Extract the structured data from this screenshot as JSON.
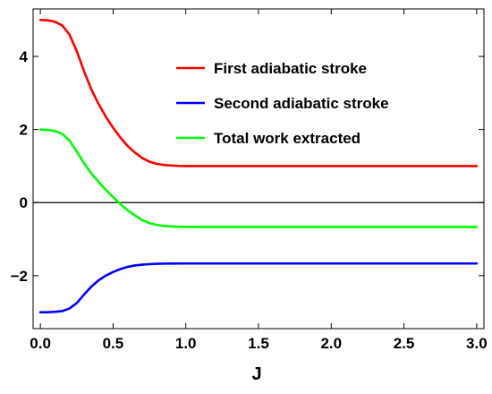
{
  "chart_data": {
    "type": "line",
    "title": "",
    "xlabel": "J",
    "ylabel": "",
    "xlim": [
      -0.05,
      3.05
    ],
    "ylim": [
      -3.45,
      5.3
    ],
    "xticks": [
      0.0,
      0.5,
      1.0,
      1.5,
      2.0,
      2.5,
      3.0
    ],
    "xtick_labels": [
      "0.0",
      "0.5",
      "1.0",
      "1.5",
      "2.0",
      "2.5",
      "3.0"
    ],
    "yticks": [
      -2,
      0,
      2,
      4
    ],
    "ytick_labels": [
      "−2",
      "0",
      "2",
      "4"
    ],
    "zero_line": true,
    "grid": false,
    "legend_position": "top-right",
    "series": [
      {
        "name": "First adiabatic stroke",
        "color": "#ff0000",
        "x": [
          0.0,
          0.05,
          0.1,
          0.15,
          0.2,
          0.25,
          0.3,
          0.35,
          0.4,
          0.45,
          0.5,
          0.55,
          0.6,
          0.65,
          0.7,
          0.75,
          0.8,
          0.85,
          0.9,
          0.95,
          1.0,
          1.1,
          1.2,
          1.5,
          2.0,
          2.5,
          3.0
        ],
        "values": [
          5.0,
          4.99,
          4.95,
          4.85,
          4.6,
          4.15,
          3.6,
          3.1,
          2.7,
          2.35,
          2.05,
          1.78,
          1.55,
          1.37,
          1.22,
          1.12,
          1.06,
          1.03,
          1.015,
          1.005,
          1.0,
          1.0,
          1.0,
          1.0,
          1.0,
          1.0,
          1.0
        ]
      },
      {
        "name": "Second adiabatic stroke",
        "color": "#0000ff",
        "x": [
          0.0,
          0.05,
          0.1,
          0.15,
          0.2,
          0.25,
          0.3,
          0.35,
          0.4,
          0.45,
          0.5,
          0.55,
          0.6,
          0.65,
          0.7,
          0.75,
          0.8,
          0.85,
          0.9,
          1.0,
          1.1,
          1.5,
          2.0,
          2.5,
          3.0
        ],
        "values": [
          -3.0,
          -3.0,
          -2.99,
          -2.97,
          -2.9,
          -2.75,
          -2.52,
          -2.3,
          -2.13,
          -2.0,
          -1.9,
          -1.82,
          -1.76,
          -1.72,
          -1.7,
          -1.685,
          -1.675,
          -1.67,
          -1.668,
          -1.667,
          -1.667,
          -1.667,
          -1.667,
          -1.667,
          -1.667
        ]
      },
      {
        "name": "Total work extracted",
        "color": "#00ff00",
        "x": [
          0.0,
          0.05,
          0.1,
          0.15,
          0.2,
          0.25,
          0.3,
          0.35,
          0.4,
          0.45,
          0.5,
          0.55,
          0.6,
          0.65,
          0.7,
          0.75,
          0.8,
          0.85,
          0.9,
          1.0,
          1.1,
          1.5,
          2.0,
          2.5,
          3.0
        ],
        "values": [
          2.0,
          1.99,
          1.96,
          1.88,
          1.7,
          1.4,
          1.08,
          0.8,
          0.57,
          0.35,
          0.15,
          -0.04,
          -0.21,
          -0.35,
          -0.48,
          -0.56,
          -0.61,
          -0.64,
          -0.655,
          -0.665,
          -0.667,
          -0.667,
          -0.667,
          -0.667,
          -0.667
        ]
      }
    ]
  }
}
